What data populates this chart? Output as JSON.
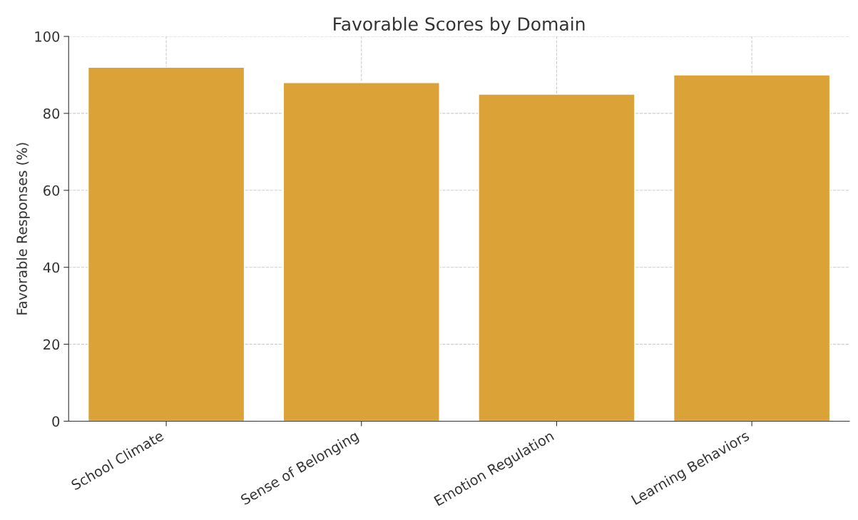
{
  "chart_data": {
    "type": "bar",
    "title": "Favorable Scores by Domain",
    "ylabel": "Favorable Responses (%)",
    "categories": [
      "School Climate",
      "Sense of Belonging",
      "Emotion Regulation",
      "Learning Behaviors"
    ],
    "values": [
      92,
      88,
      85,
      90
    ],
    "color": "#dba238",
    "ylim": [
      0,
      100
    ],
    "yticks": [
      0,
      20,
      40,
      60,
      80,
      100
    ],
    "grid": true
  }
}
